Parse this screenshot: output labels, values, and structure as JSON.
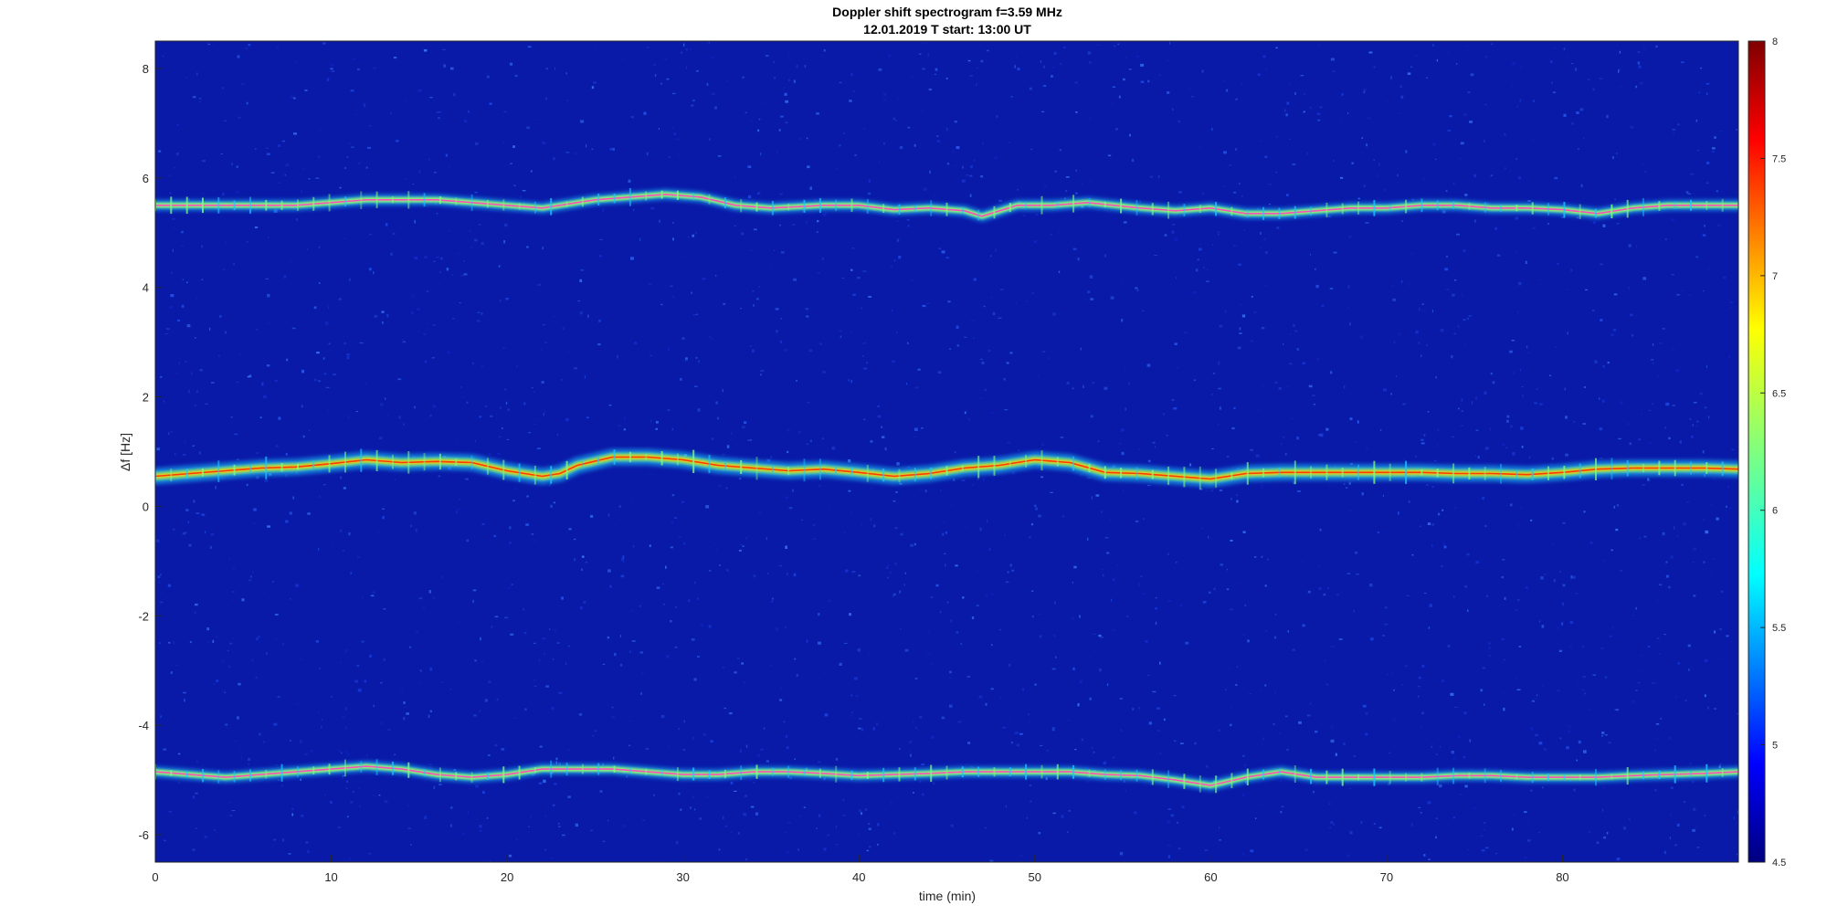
{
  "chart_data": {
    "type": "heatmap",
    "title": "Doppler shift spectrogram f=3.59 MHz",
    "subtitle": "12.01.2019   T start: 13:00 UT",
    "xlabel": "time (min)",
    "ylabel": "Δf [Hz]",
    "xlim": [
      0,
      90
    ],
    "ylim": [
      -6.5,
      8.5
    ],
    "x_ticks": [
      "0",
      "10",
      "20",
      "30",
      "40",
      "50",
      "60",
      "70",
      "80"
    ],
    "y_ticks": [
      "8",
      "6",
      "4",
      "2",
      "0",
      "-2",
      "-4",
      "-6"
    ],
    "colorbar": {
      "range": [
        4.5,
        8
      ],
      "colormap": "jet",
      "ticks": [
        "8",
        "7.5",
        "7",
        "6.5",
        "6",
        "5.5",
        "5",
        "4.5"
      ]
    },
    "background_color": "#0a1aa8",
    "series": [
      {
        "x": [
          0,
          2,
          5,
          8,
          10,
          12,
          14,
          16,
          18,
          20,
          22,
          23,
          25,
          27,
          29,
          31,
          33,
          35,
          38,
          40,
          42,
          44,
          46,
          47,
          49,
          51,
          53,
          56,
          58,
          60,
          62,
          64,
          66,
          68,
          70,
          72,
          74,
          76,
          78,
          80,
          82,
          84,
          86,
          88,
          90
        ],
        "y": [
          5.5,
          5.5,
          5.5,
          5.5,
          5.55,
          5.6,
          5.6,
          5.6,
          5.55,
          5.5,
          5.45,
          5.5,
          5.6,
          5.65,
          5.7,
          5.65,
          5.5,
          5.45,
          5.5,
          5.5,
          5.42,
          5.45,
          5.4,
          5.3,
          5.5,
          5.5,
          5.55,
          5.45,
          5.4,
          5.45,
          5.35,
          5.35,
          5.4,
          5.45,
          5.45,
          5.5,
          5.5,
          5.45,
          5.45,
          5.42,
          5.35,
          5.45,
          5.5,
          5.5,
          5.5
        ]
      },
      {
        "x": [
          0,
          2,
          4,
          6,
          8,
          10,
          12,
          14,
          16,
          18,
          20,
          22,
          23,
          24,
          26,
          28,
          30,
          32,
          34,
          36,
          38,
          40,
          42,
          44,
          46,
          48,
          50,
          52,
          54,
          56,
          58,
          60,
          62,
          64,
          66,
          68,
          70,
          72,
          74,
          76,
          78,
          80,
          82,
          84,
          86,
          88,
          90
        ],
        "y": [
          0.55,
          0.6,
          0.65,
          0.7,
          0.72,
          0.78,
          0.85,
          0.8,
          0.82,
          0.8,
          0.65,
          0.55,
          0.6,
          0.75,
          0.9,
          0.9,
          0.85,
          0.75,
          0.7,
          0.65,
          0.68,
          0.62,
          0.55,
          0.6,
          0.7,
          0.75,
          0.85,
          0.8,
          0.62,
          0.6,
          0.55,
          0.5,
          0.6,
          0.62,
          0.62,
          0.62,
          0.62,
          0.62,
          0.6,
          0.6,
          0.58,
          0.62,
          0.68,
          0.7,
          0.7,
          0.7,
          0.68
        ]
      },
      {
        "x": [
          0,
          2,
          4,
          6,
          8,
          10,
          12,
          14,
          16,
          18,
          20,
          22,
          24,
          26,
          28,
          30,
          32,
          34,
          36,
          38,
          40,
          42,
          44,
          46,
          48,
          50,
          52,
          54,
          56,
          58,
          60,
          62,
          64,
          66,
          68,
          70,
          72,
          74,
          76,
          78,
          80,
          82,
          84,
          86,
          88,
          90
        ],
        "y": [
          -4.85,
          -4.9,
          -4.95,
          -4.9,
          -4.85,
          -4.8,
          -4.75,
          -4.8,
          -4.9,
          -4.95,
          -4.9,
          -4.8,
          -4.8,
          -4.8,
          -4.85,
          -4.9,
          -4.9,
          -4.85,
          -4.85,
          -4.88,
          -4.92,
          -4.9,
          -4.88,
          -4.85,
          -4.85,
          -4.85,
          -4.85,
          -4.9,
          -4.92,
          -5.0,
          -5.1,
          -4.95,
          -4.85,
          -4.95,
          -4.95,
          -4.95,
          -4.95,
          -4.92,
          -4.92,
          -4.95,
          -4.95,
          -4.95,
          -4.92,
          -4.9,
          -4.88,
          -4.85
        ]
      }
    ]
  }
}
